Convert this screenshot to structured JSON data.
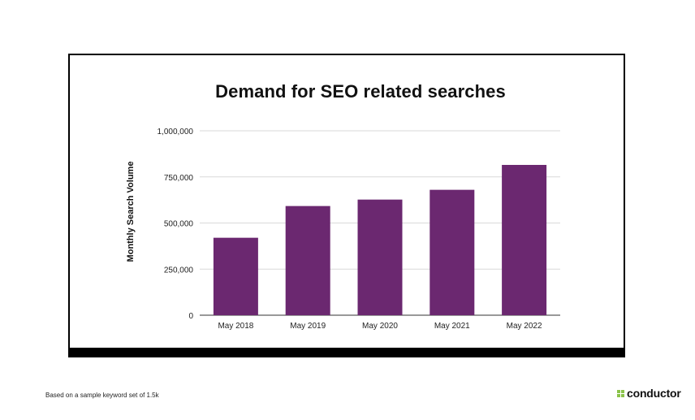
{
  "chart_data": {
    "type": "bar",
    "title": "Demand for SEO related searches",
    "xlabel": "",
    "ylabel": "Monthly Search Volume",
    "categories": [
      "May 2018",
      "May 2019",
      "May 2020",
      "May 2021",
      "May 2022"
    ],
    "values": [
      420000,
      592000,
      627000,
      680000,
      815000
    ],
    "ylim": [
      0,
      1000000
    ],
    "yticks": [
      0,
      250000,
      500000,
      750000,
      1000000
    ],
    "ytick_labels": [
      "0",
      "250,000",
      "500,000",
      "750,000",
      "1,000,000"
    ],
    "grid": true,
    "bar_color": "#6b2870"
  },
  "footnote": "Based on a sample keyword set of 1.5k",
  "brand": {
    "name": "conductor",
    "icon": "conductor-logo-icon",
    "icon_color": "#8bc34a"
  }
}
